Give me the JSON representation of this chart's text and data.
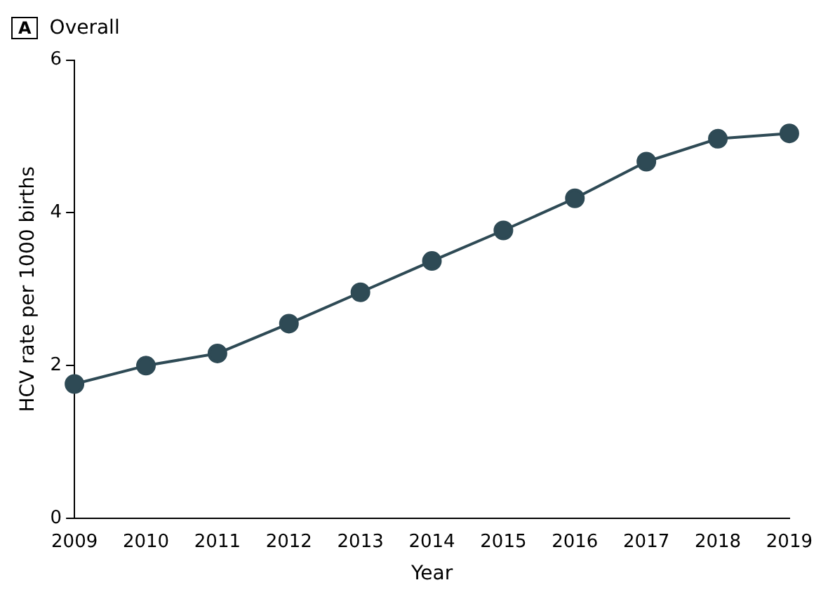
{
  "chart_data": {
    "type": "line",
    "title": "Overall",
    "annotations": [
      "A"
    ],
    "xlabel": "Year",
    "ylabel": "HCV rate per 1000 births",
    "categories": [
      "2009",
      "2010",
      "2011",
      "2012",
      "2013",
      "2014",
      "2015",
      "2016",
      "2017",
      "2018",
      "2019"
    ],
    "series": [
      {
        "color": "#2e4a55",
        "values": [
          1.76,
          2.0,
          2.16,
          2.55,
          2.96,
          3.37,
          3.77,
          4.19,
          4.67,
          4.97,
          5.04
        ]
      }
    ],
    "ylim": [
      0,
      6
    ],
    "yticks": [
      0,
      2,
      4,
      6
    ],
    "grid": false,
    "legend": false,
    "marker": "circle",
    "line_style": "solid"
  }
}
